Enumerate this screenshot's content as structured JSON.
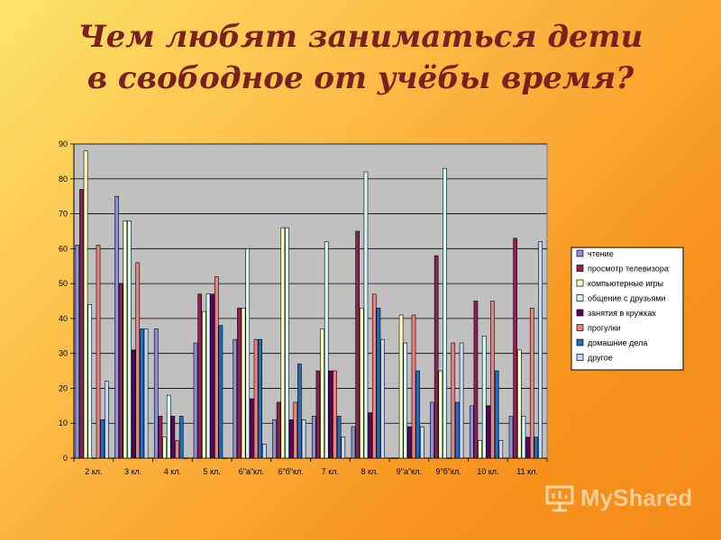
{
  "header": {
    "title_line1": "Чем любят заниматься дети",
    "title_line2": "в свободное от учёбы время?"
  },
  "watermark": {
    "text": "MyShared"
  },
  "chart_data": {
    "type": "bar",
    "categories": [
      "2 кл.",
      "3 кл.",
      "4 кл.",
      "5 кл.",
      "6\"а\"кл.",
      "6\"б\"кл.",
      "7 кл.",
      "8 кл.",
      "9\"а\"кл.",
      "9\"б\"кл.",
      "10 кл.",
      "11 кл."
    ],
    "ylim": [
      0,
      90
    ],
    "yticks": [
      0,
      10,
      20,
      30,
      40,
      50,
      60,
      70,
      80,
      90
    ],
    "grid": true,
    "legend_position": "right",
    "series": [
      {
        "name": "чтение",
        "color": "#8f8fd8",
        "values": [
          61,
          75,
          37,
          33,
          34,
          11,
          12,
          9,
          0,
          16,
          15,
          12
        ]
      },
      {
        "name": "просмотр телевизора",
        "color": "#8b2252",
        "values": [
          77,
          50,
          12,
          47,
          43,
          16,
          25,
          65,
          0,
          58,
          45,
          63
        ]
      },
      {
        "name": "компьютерные игры",
        "color": "#ffffc0",
        "values": [
          88,
          68,
          6,
          42,
          43,
          66,
          37,
          43,
          41,
          25,
          5,
          31
        ]
      },
      {
        "name": "общение с друзьями",
        "color": "#d8f8f8",
        "values": [
          44,
          68,
          18,
          47,
          60,
          66,
          62,
          82,
          33,
          83,
          35,
          12
        ]
      },
      {
        "name": "занятия в кружках",
        "color": "#600060",
        "values": [
          0,
          31,
          12,
          47,
          17,
          11,
          25,
          13,
          9,
          0,
          15,
          6
        ]
      },
      {
        "name": "прогулки",
        "color": "#f08080",
        "values": [
          61,
          56,
          5,
          52,
          34,
          16,
          25,
          47,
          41,
          33,
          45,
          43
        ]
      },
      {
        "name": "домашние дела",
        "color": "#1f6fbf",
        "values": [
          11,
          37,
          12,
          38,
          34,
          27,
          12,
          43,
          25,
          16,
          25,
          6
        ]
      },
      {
        "name": "другое",
        "color": "#c8d8f8",
        "values": [
          22,
          37,
          0,
          0,
          4,
          11,
          6,
          34,
          9,
          33,
          5,
          62
        ]
      }
    ]
  }
}
